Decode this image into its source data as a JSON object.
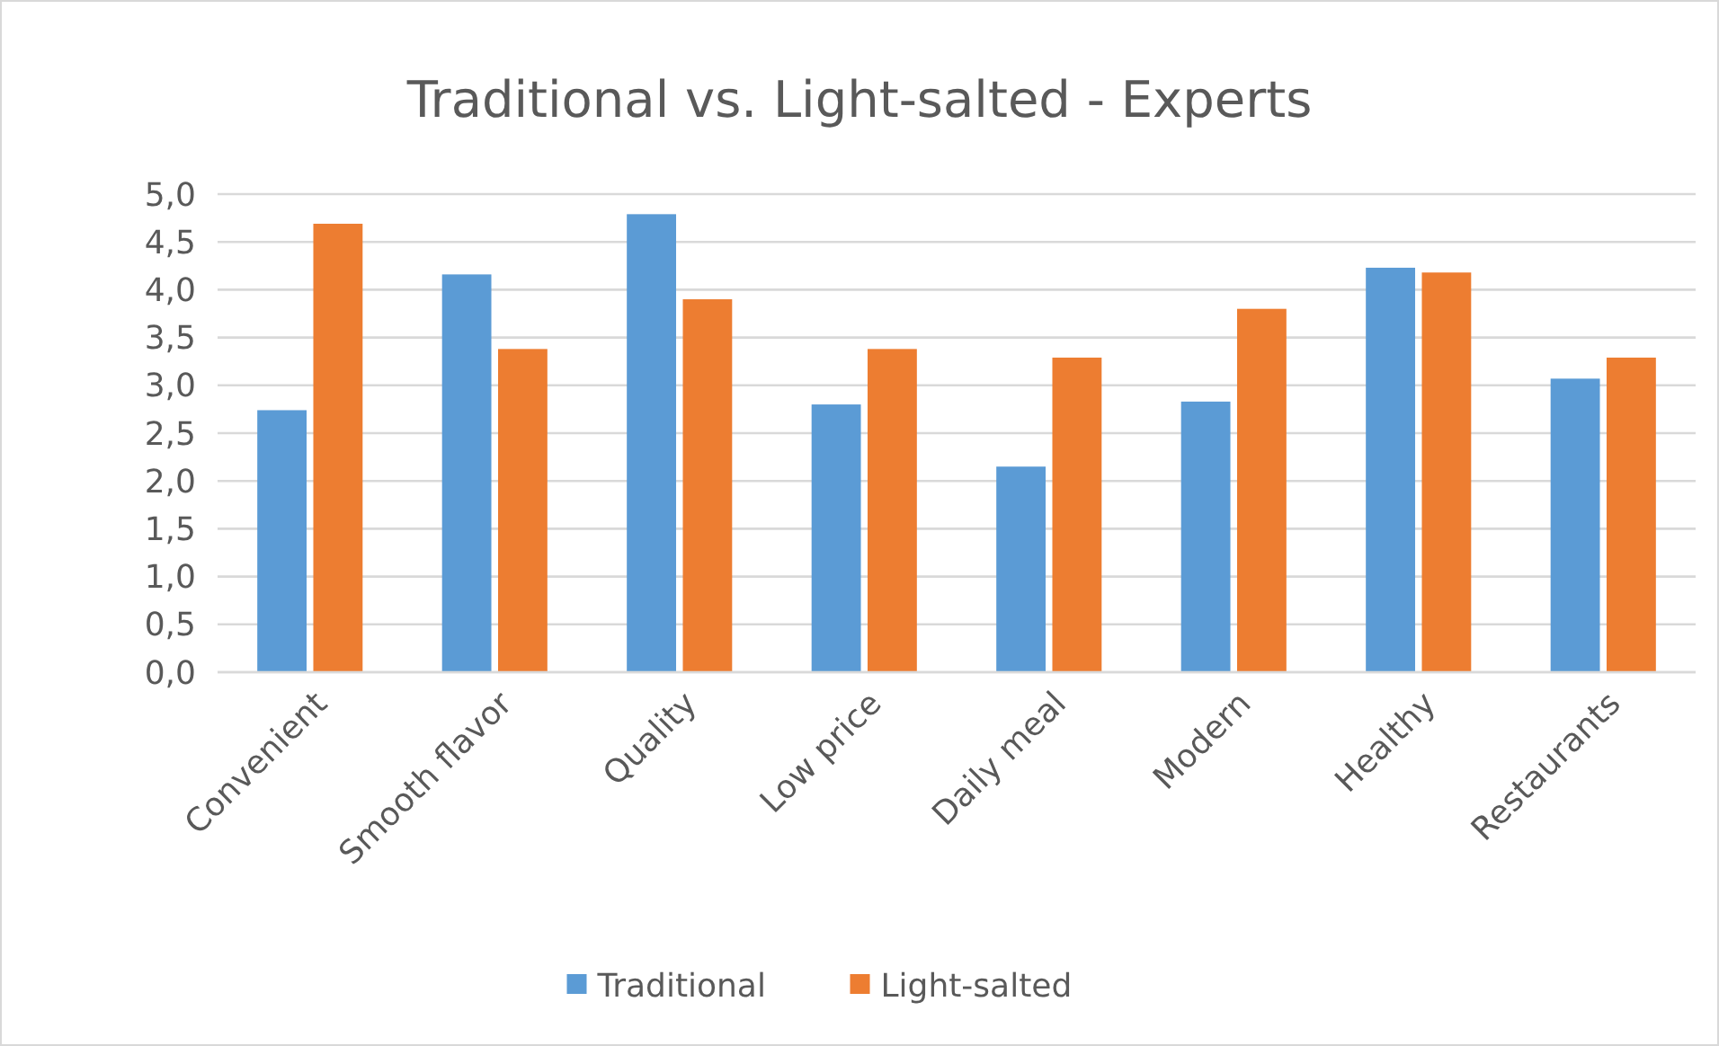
{
  "chart_data": {
    "type": "bar",
    "title": "Traditional vs. Light-salted - Experts",
    "categories": [
      "Convenient",
      "Smooth flavor",
      "Quality",
      "Low price",
      "Daily meal",
      "Modern",
      "Healthy",
      "Restaurants"
    ],
    "series": [
      {
        "name": "Traditional",
        "color": "#5b9bd5",
        "values": [
          2.74,
          4.16,
          4.79,
          2.8,
          2.15,
          2.83,
          4.23,
          3.07
        ]
      },
      {
        "name": "Light-salted",
        "color": "#ed7d31",
        "values": [
          4.69,
          3.38,
          3.9,
          3.38,
          3.29,
          3.8,
          4.18,
          3.29
        ]
      }
    ],
    "ylim": [
      0,
      5
    ],
    "yticks": [
      {
        "value": 0,
        "label": "0,0"
      },
      {
        "value": 0.5,
        "label": "0,5"
      },
      {
        "value": 1,
        "label": "1,0"
      },
      {
        "value": 1.5,
        "label": "1,5"
      },
      {
        "value": 2,
        "label": "2,0"
      },
      {
        "value": 2.5,
        "label": "2,5"
      },
      {
        "value": 3,
        "label": "3,0"
      },
      {
        "value": 3.5,
        "label": "3,5"
      },
      {
        "value": 4,
        "label": "4,0"
      },
      {
        "value": 4.5,
        "label": "4,5"
      },
      {
        "value": 5,
        "label": "5,0"
      }
    ],
    "grid": "y",
    "legend": "bottom"
  }
}
